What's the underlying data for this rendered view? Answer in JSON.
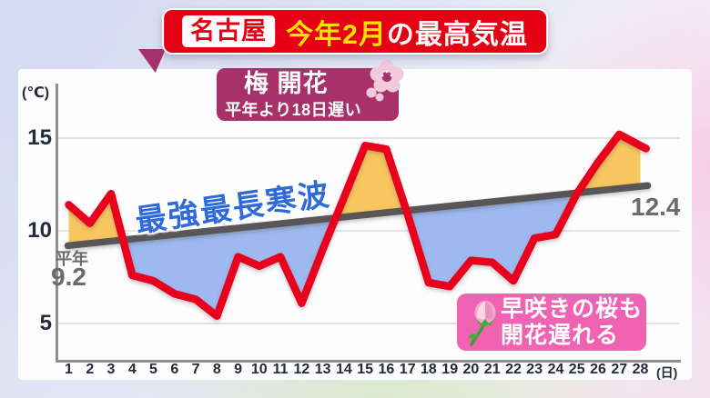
{
  "header": {
    "location_badge": "名古屋",
    "title_highlight": "今年2月",
    "title_rest": "の最高気温"
  },
  "axis": {
    "y_unit_label": "(℃)",
    "x_unit_label": "(日)"
  },
  "labels": {
    "normal_name": "平年",
    "normal_start_value": "9.2",
    "normal_end_value": "12.4",
    "cold_wave": "最強最長寒波"
  },
  "callouts": {
    "ume": {
      "title": "梅 開花",
      "subtitle": "平年より18日遅い",
      "icon": "plum-blossom"
    },
    "sakura": {
      "line1": "早咲きの桜も",
      "line2": "開花遅れる",
      "icon": "cherry-bud"
    }
  },
  "colors": {
    "title_bar_red": "#e60013",
    "title_highlight_yellow": "#ffe100",
    "red_line": "#e8001f",
    "normal_line_gray": "#595757",
    "above_normal_fill": "#f7c65e",
    "below_normal_fill": "#9db9ef",
    "cold_wave_text_blue": "#2e6bd8",
    "ume_box": "#a73168",
    "sakura_box": "#ef63b2"
  },
  "chart_data": {
    "type": "line",
    "title": "名古屋 今年2月の最高気温",
    "xlabel": "日",
    "ylabel": "℃",
    "x": [
      1,
      2,
      3,
      4,
      5,
      6,
      7,
      8,
      9,
      10,
      11,
      12,
      13,
      14,
      15,
      16,
      17,
      18,
      19,
      20,
      21,
      22,
      23,
      24,
      25,
      26,
      27,
      28
    ],
    "y_ticks": [
      5,
      10,
      15
    ],
    "ylim": [
      2.5,
      16.5
    ],
    "grid": true,
    "legend_position": "none",
    "series": [
      {
        "name": "今年2月の最高気温",
        "color": "#e8001f",
        "values": [
          11.4,
          10.4,
          12.0,
          7.6,
          7.3,
          6.6,
          6.3,
          5.4,
          8.6,
          8.1,
          8.6,
          6.1,
          9.0,
          11.8,
          14.6,
          14.4,
          10.9,
          7.2,
          7.0,
          8.4,
          8.3,
          7.3,
          9.6,
          9.8,
          12.0,
          13.7,
          15.2,
          14.6
        ]
      },
      {
        "name": "平年",
        "color": "#595757",
        "shape": "straight-line",
        "values": [
          9.2,
          9.3,
          9.4,
          9.6,
          9.7,
          9.8,
          9.9,
          10.0,
          10.1,
          10.3,
          10.4,
          10.5,
          10.6,
          10.7,
          10.9,
          11.0,
          11.1,
          11.2,
          11.3,
          11.5,
          11.6,
          11.7,
          11.8,
          11.9,
          12.0,
          12.2,
          12.3,
          12.4
        ]
      }
    ],
    "fill_above_color": "#f7c65e",
    "fill_below_color": "#9db9ef",
    "annotations": [
      {
        "x": 15,
        "text": "梅 開花 平年より18日遅い"
      },
      {
        "text": "最強最長寒波"
      },
      {
        "text": "早咲きの桜も開花遅れる"
      },
      {
        "x": 1,
        "y": 9.2,
        "text": "平年 9.2"
      },
      {
        "x": 28,
        "y": 12.4,
        "text": "12.4"
      }
    ]
  }
}
